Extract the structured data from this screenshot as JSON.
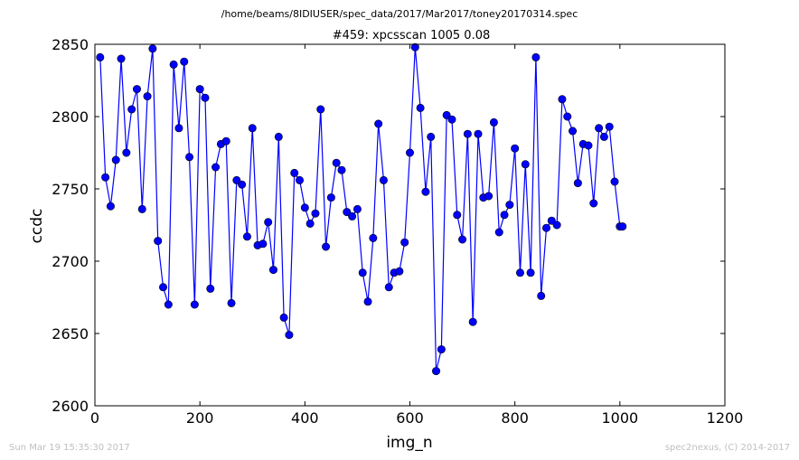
{
  "header": {
    "file_path": "/home/beams/8IDIUSER/spec_data/2017/Mar2017/toney20170314.spec"
  },
  "footer": {
    "timestamp": "Sun Mar 19 15:35:30 2017",
    "credit": "spec2nexus, (C) 2014-2017"
  },
  "colors": {
    "series": "#0000ff",
    "frame": "#000000",
    "footer_text": "#bfbfbf"
  },
  "chart_data": {
    "type": "line",
    "title": "#459: xpcsscan 1005 0.08",
    "xlabel": "img_n",
    "ylabel": "ccdc",
    "xlim": [
      0,
      1200
    ],
    "ylim": [
      2600,
      2850
    ],
    "xticks": [
      "0",
      "200",
      "400",
      "600",
      "800",
      "1000",
      "1200"
    ],
    "yticks": [
      "2600",
      "2650",
      "2700",
      "2750",
      "2800",
      "2850"
    ],
    "grid": false,
    "marker": "circle",
    "x": [
      10,
      20,
      30,
      40,
      50,
      60,
      70,
      80,
      90,
      100,
      110,
      120,
      130,
      140,
      150,
      160,
      170,
      180,
      190,
      200,
      210,
      220,
      230,
      240,
      250,
      260,
      270,
      280,
      290,
      300,
      310,
      320,
      330,
      340,
      350,
      360,
      370,
      380,
      390,
      400,
      410,
      420,
      430,
      440,
      450,
      460,
      470,
      480,
      490,
      500,
      510,
      520,
      530,
      540,
      550,
      560,
      570,
      580,
      590,
      600,
      610,
      620,
      630,
      640,
      650,
      660,
      670,
      680,
      690,
      700,
      710,
      720,
      730,
      740,
      750,
      760,
      770,
      780,
      790,
      800,
      810,
      820,
      830,
      840,
      850,
      860,
      870,
      880,
      890,
      900,
      910,
      920,
      930,
      940,
      950,
      960,
      970,
      980,
      990,
      1000,
      1005
    ],
    "y": [
      2841,
      2758,
      2738,
      2770,
      2840,
      2775,
      2805,
      2819,
      2736,
      2814,
      2847,
      2714,
      2682,
      2670,
      2836,
      2792,
      2838,
      2772,
      2670,
      2819,
      2813,
      2681,
      2765,
      2781,
      2783,
      2671,
      2756,
      2753,
      2717,
      2792,
      2711,
      2712,
      2727,
      2694,
      2786,
      2661,
      2649,
      2761,
      2756,
      2737,
      2726,
      2733,
      2805,
      2710,
      2744,
      2768,
      2763,
      2734,
      2731,
      2736,
      2692,
      2672,
      2716,
      2795,
      2756,
      2682,
      2692,
      2693,
      2713,
      2775,
      2848,
      2806,
      2748,
      2786,
      2624,
      2639,
      2801,
      2798,
      2732,
      2715,
      2788,
      2658,
      2788,
      2744,
      2745,
      2796,
      2720,
      2732,
      2739,
      2778,
      2692,
      2767,
      2692,
      2841,
      2676,
      2723,
      2728,
      2725,
      2812,
      2800,
      2790,
      2754,
      2781,
      2780,
      2740,
      2792,
      2786,
      2793,
      2755,
      2724,
      2724
    ]
  }
}
